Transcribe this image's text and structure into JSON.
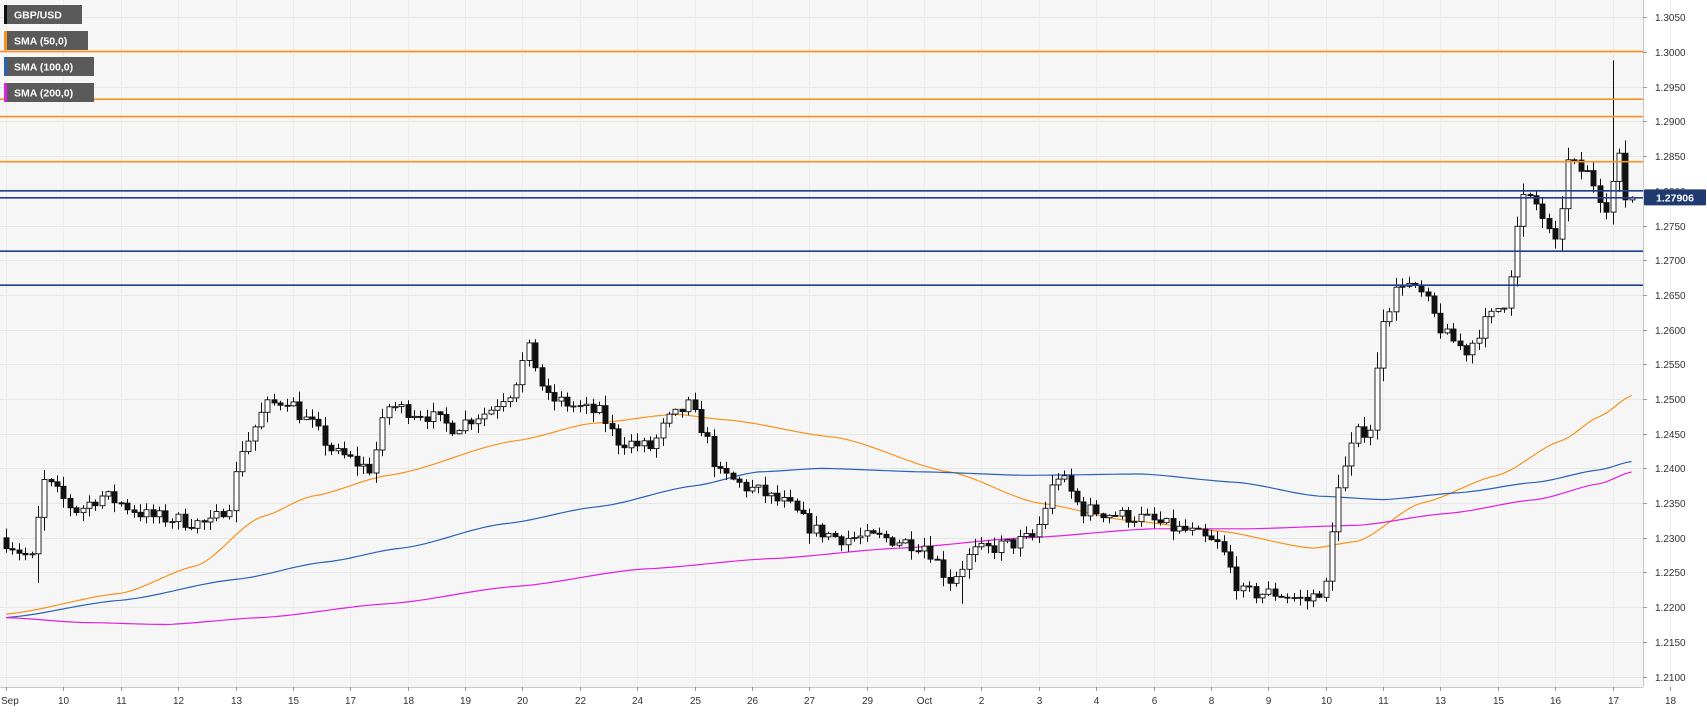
{
  "chart_data": {
    "type": "candlestick",
    "title": "",
    "xlabel": "",
    "ylabel": "",
    "ylim": [
      1.2085,
      1.3075
    ],
    "grid": true,
    "legend_position": "top-left",
    "y_ticks": [
      "1.3050",
      "1.3000",
      "1.2950",
      "1.2900",
      "1.2850",
      "1.2800",
      "1.2750",
      "1.2700",
      "1.2650",
      "1.2600",
      "1.2550",
      "1.2500",
      "1.2450",
      "1.2400",
      "1.2350",
      "1.2300",
      "1.2250",
      "1.2200",
      "1.2150",
      "1.2100"
    ],
    "x_ticks": [
      {
        "label": "Sep",
        "bar": 0
      },
      {
        "label": "10",
        "bar": 9
      },
      {
        "label": "11",
        "bar": 18
      },
      {
        "label": "12",
        "bar": 27
      },
      {
        "label": "13",
        "bar": 36
      },
      {
        "label": "15",
        "bar": 45
      },
      {
        "label": "17",
        "bar": 54
      },
      {
        "label": "18",
        "bar": 63
      },
      {
        "label": "19",
        "bar": 72
      },
      {
        "label": "20",
        "bar": 81
      },
      {
        "label": "22",
        "bar": 90
      },
      {
        "label": "24",
        "bar": 99
      },
      {
        "label": "25",
        "bar": 108
      },
      {
        "label": "26",
        "bar": 117
      },
      {
        "label": "27",
        "bar": 126
      },
      {
        "label": "29",
        "bar": 135
      },
      {
        "label": "Oct",
        "bar": 144
      },
      {
        "label": "2",
        "bar": 153
      },
      {
        "label": "3",
        "bar": 162
      },
      {
        "label": "4",
        "bar": 171
      },
      {
        "label": "6",
        "bar": 180
      },
      {
        "label": "8",
        "bar": 189
      },
      {
        "label": "9",
        "bar": 198
      },
      {
        "label": "10",
        "bar": 207
      },
      {
        "label": "11",
        "bar": 216
      },
      {
        "label": "13",
        "bar": 225
      },
      {
        "label": "15",
        "bar": 234
      },
      {
        "label": "16",
        "bar": 243
      },
      {
        "label": "17",
        "bar": 252
      },
      {
        "label": "18",
        "bar": 261
      }
    ],
    "legend": [
      {
        "label": "GBP/USD",
        "color": "#111111"
      },
      {
        "label": "SMA (50,0)",
        "color": "#f7931e"
      },
      {
        "label": "SMA (100,0)",
        "color": "#2a62b8"
      },
      {
        "label": "SMA (200,0)",
        "color": "#e020e0"
      }
    ],
    "last_price": {
      "label": "1.27906",
      "value": 1.27906
    },
    "horizontal_levels": [
      {
        "value": 1.3001,
        "color": "#f7931e"
      },
      {
        "value": 1.2932,
        "color": "#f7931e"
      },
      {
        "value": 1.2907,
        "color": "#f7931e"
      },
      {
        "value": 1.2842,
        "color": "#f7931e"
      },
      {
        "value": 1.28,
        "color": "#1f3f8f"
      },
      {
        "value": 1.279,
        "color": "#1f3f8f"
      },
      {
        "value": 1.2713,
        "color": "#1f3f8f"
      },
      {
        "value": 1.2664,
        "color": "#1f3f8f"
      }
    ],
    "waypoints": [
      [
        0,
        1.23
      ],
      [
        5,
        1.227
      ],
      [
        7,
        1.238
      ],
      [
        12,
        1.234
      ],
      [
        16,
        1.236
      ],
      [
        24,
        1.233
      ],
      [
        33,
        1.232
      ],
      [
        36,
        1.235
      ],
      [
        38,
        1.243
      ],
      [
        42,
        1.249
      ],
      [
        45,
        1.25
      ],
      [
        48,
        1.247
      ],
      [
        53,
        1.242
      ],
      [
        58,
        1.24
      ],
      [
        61,
        1.249
      ],
      [
        66,
        1.248
      ],
      [
        71,
        1.246
      ],
      [
        76,
        1.248
      ],
      [
        80,
        1.251
      ],
      [
        83,
        1.257
      ],
      [
        86,
        1.25
      ],
      [
        94,
        1.248
      ],
      [
        97,
        1.244
      ],
      [
        102,
        1.243
      ],
      [
        105,
        1.247
      ],
      [
        108,
        1.249
      ],
      [
        110,
        1.246
      ],
      [
        113,
        1.239
      ],
      [
        118,
        1.237
      ],
      [
        123,
        1.235
      ],
      [
        128,
        1.231
      ],
      [
        132,
        1.23
      ],
      [
        138,
        1.23
      ],
      [
        145,
        1.229
      ],
      [
        149,
        1.224
      ],
      [
        153,
        1.228
      ],
      [
        158,
        1.229
      ],
      [
        162,
        1.23
      ],
      [
        166,
        1.239
      ],
      [
        170,
        1.234
      ],
      [
        178,
        1.233
      ],
      [
        186,
        1.231
      ],
      [
        191,
        1.229
      ],
      [
        195,
        1.222
      ],
      [
        200,
        1.222
      ],
      [
        205,
        1.221
      ],
      [
        208,
        1.223
      ],
      [
        210,
        1.238
      ],
      [
        213,
        1.245
      ],
      [
        215,
        1.246
      ],
      [
        217,
        1.262
      ],
      [
        220,
        1.267
      ],
      [
        223,
        1.265
      ],
      [
        227,
        1.259
      ],
      [
        230,
        1.257
      ],
      [
        233,
        1.261
      ],
      [
        236,
        1.264
      ],
      [
        239,
        1.279
      ],
      [
        241,
        1.278
      ],
      [
        244,
        1.272
      ],
      [
        246,
        1.284
      ],
      [
        249,
        1.2825
      ],
      [
        252,
        1.278
      ],
      [
        254,
        1.2845
      ],
      [
        255,
        1.279
      ]
    ],
    "sma": [
      {
        "name": "SMA (50,0)",
        "color": "#f7931e",
        "points": [
          [
            0,
            1.219
          ],
          [
            18,
            1.222
          ],
          [
            30,
            1.226
          ],
          [
            40,
            1.233
          ],
          [
            48,
            1.236
          ],
          [
            60,
            1.239
          ],
          [
            80,
            1.244
          ],
          [
            92,
            1.2465
          ],
          [
            105,
            1.2478
          ],
          [
            113,
            1.247
          ],
          [
            130,
            1.2445
          ],
          [
            148,
            1.2395
          ],
          [
            162,
            1.235
          ],
          [
            176,
            1.2325
          ],
          [
            190,
            1.231
          ],
          [
            205,
            1.2285
          ],
          [
            212,
            1.2295
          ],
          [
            222,
            1.235
          ],
          [
            234,
            1.239
          ],
          [
            244,
            1.244
          ],
          [
            250,
            1.2475
          ],
          [
            255,
            1.2505
          ]
        ]
      },
      {
        "name": "SMA (100,0)",
        "color": "#2a62b8",
        "points": [
          [
            0,
            1.2185
          ],
          [
            18,
            1.221
          ],
          [
            36,
            1.224
          ],
          [
            50,
            1.2265
          ],
          [
            62,
            1.2285
          ],
          [
            78,
            1.232
          ],
          [
            93,
            1.2345
          ],
          [
            108,
            1.2375
          ],
          [
            118,
            1.2395
          ],
          [
            128,
            1.24
          ],
          [
            144,
            1.2395
          ],
          [
            160,
            1.239
          ],
          [
            178,
            1.2392
          ],
          [
            193,
            1.238
          ],
          [
            206,
            1.236
          ],
          [
            216,
            1.2355
          ],
          [
            228,
            1.2365
          ],
          [
            240,
            1.238
          ],
          [
            250,
            1.2398
          ],
          [
            255,
            1.241
          ]
        ]
      },
      {
        "name": "SMA (200,0)",
        "color": "#e020e0",
        "points": [
          [
            0,
            1.2185
          ],
          [
            12,
            1.2178
          ],
          [
            25,
            1.2175
          ],
          [
            40,
            1.2185
          ],
          [
            60,
            1.2205
          ],
          [
            80,
            1.223
          ],
          [
            100,
            1.2255
          ],
          [
            120,
            1.227
          ],
          [
            140,
            1.2285
          ],
          [
            160,
            1.23
          ],
          [
            180,
            1.2313
          ],
          [
            195,
            1.2313
          ],
          [
            212,
            1.2318
          ],
          [
            226,
            1.2335
          ],
          [
            240,
            1.2355
          ],
          [
            250,
            1.2378
          ],
          [
            255,
            1.2395
          ]
        ]
      }
    ]
  }
}
